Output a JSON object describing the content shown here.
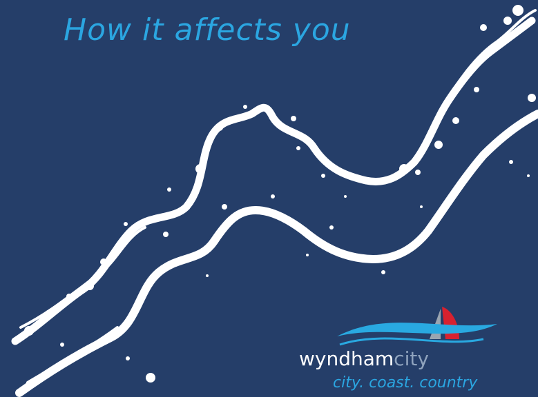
{
  "header": {
    "title": "How it affects you"
  },
  "logo": {
    "name_part1": "wyndham",
    "name_part2": "city",
    "tagline": "city. coast. country"
  }
}
